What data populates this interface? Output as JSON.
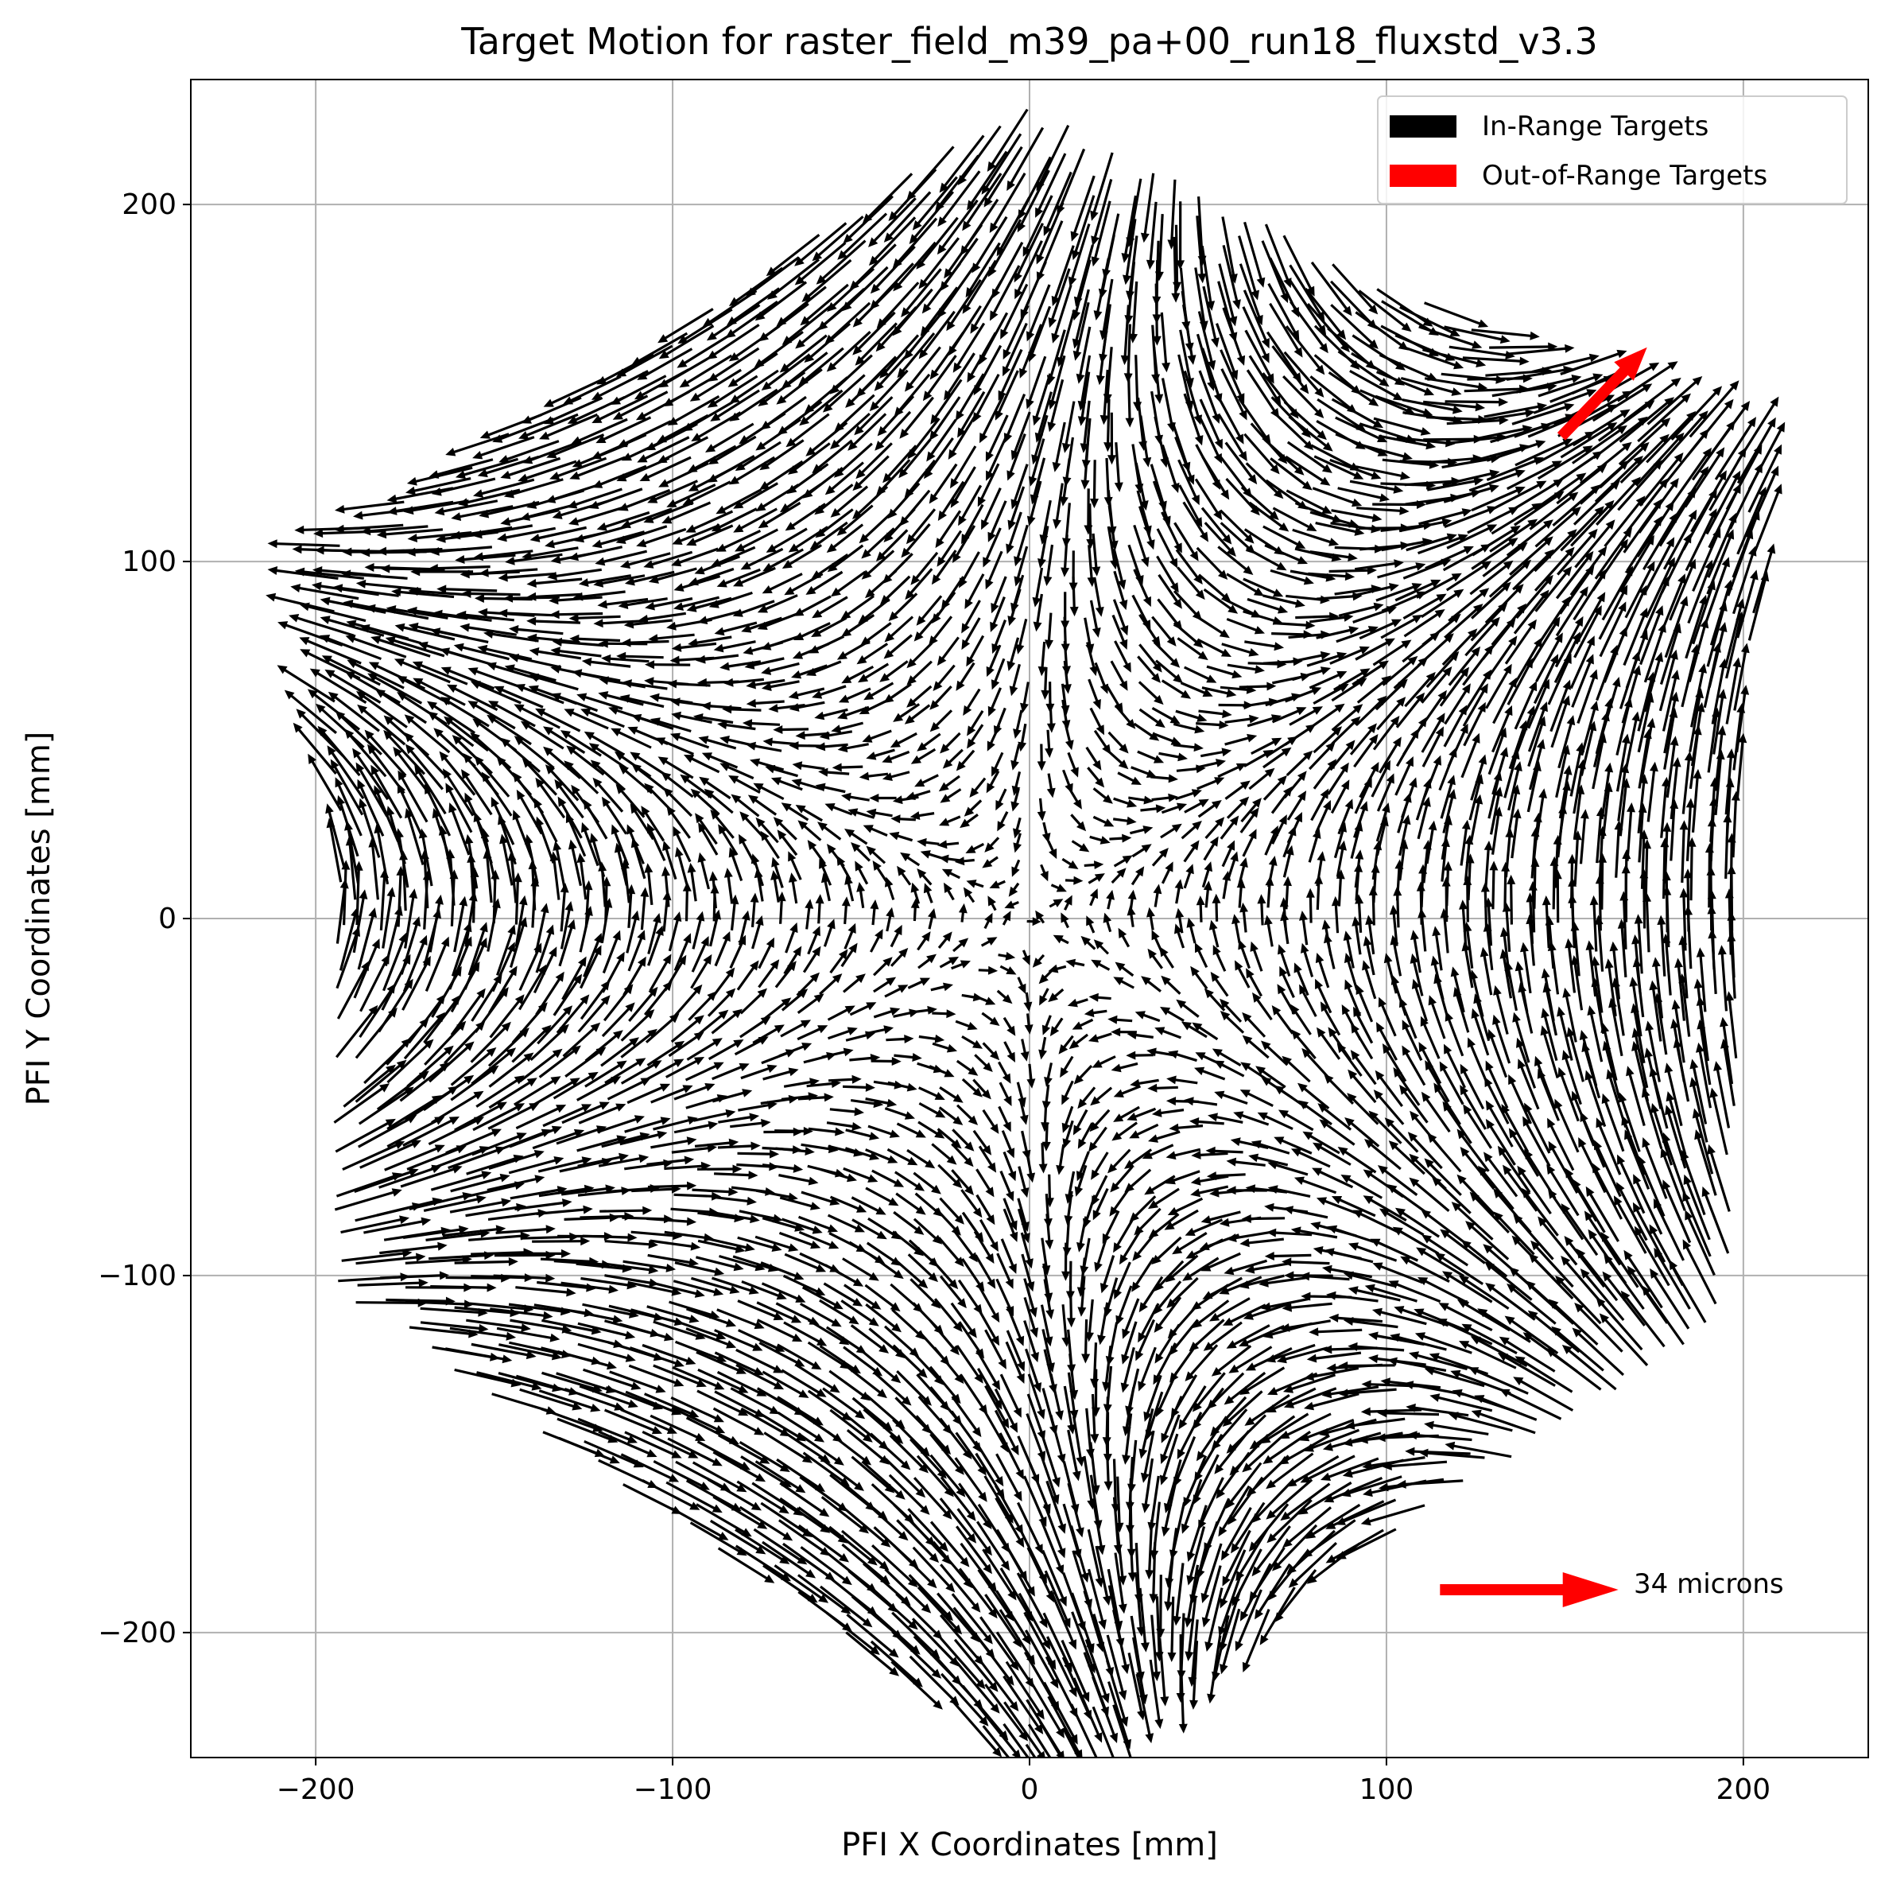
{
  "chart_data": {
    "type": "quiver",
    "title": "Target Motion for raster_field_m39_pa+00_run18_fluxstd_v3.3",
    "xlabel": "PFI X Coordinates [mm]",
    "ylabel": "PFI Y Coordinates [mm]",
    "xlim": [
      -235,
      235
    ],
    "ylim": [
      -235,
      235
    ],
    "xticks": [
      -200,
      -100,
      0,
      100,
      200
    ],
    "yticks": [
      -200,
      -100,
      0,
      100,
      200
    ],
    "xtick_labels": [
      "−200",
      "−100",
      "0",
      "100",
      "200"
    ],
    "ytick_labels": [
      "−200",
      "−100",
      "0",
      "100",
      "200"
    ],
    "grid": true,
    "field_shape": "hexagon",
    "hexagon_vertices": [
      [
        -195,
        105
      ],
      [
        0,
        230
      ],
      [
        205,
        125
      ],
      [
        195,
        -115
      ],
      [
        0,
        -235
      ],
      [
        -195,
        -105
      ]
    ],
    "vector_color_in_range": "#000000",
    "vector_color_out_of_range": "#ff0000",
    "legend_position": "upper right",
    "legend": [
      {
        "label": "In-Range Targets",
        "color": "#000000"
      },
      {
        "label": "Out-of-Range Targets",
        "color": "#ff0000"
      }
    ],
    "out_of_range_vectors": [
      {
        "x": 149,
        "y": 135,
        "dx": 24,
        "dy": 25
      }
    ],
    "key": {
      "label": "34 microns",
      "color": "#ff0000",
      "x": 115,
      "y": -188,
      "dx": 50,
      "dy": 0
    }
  }
}
